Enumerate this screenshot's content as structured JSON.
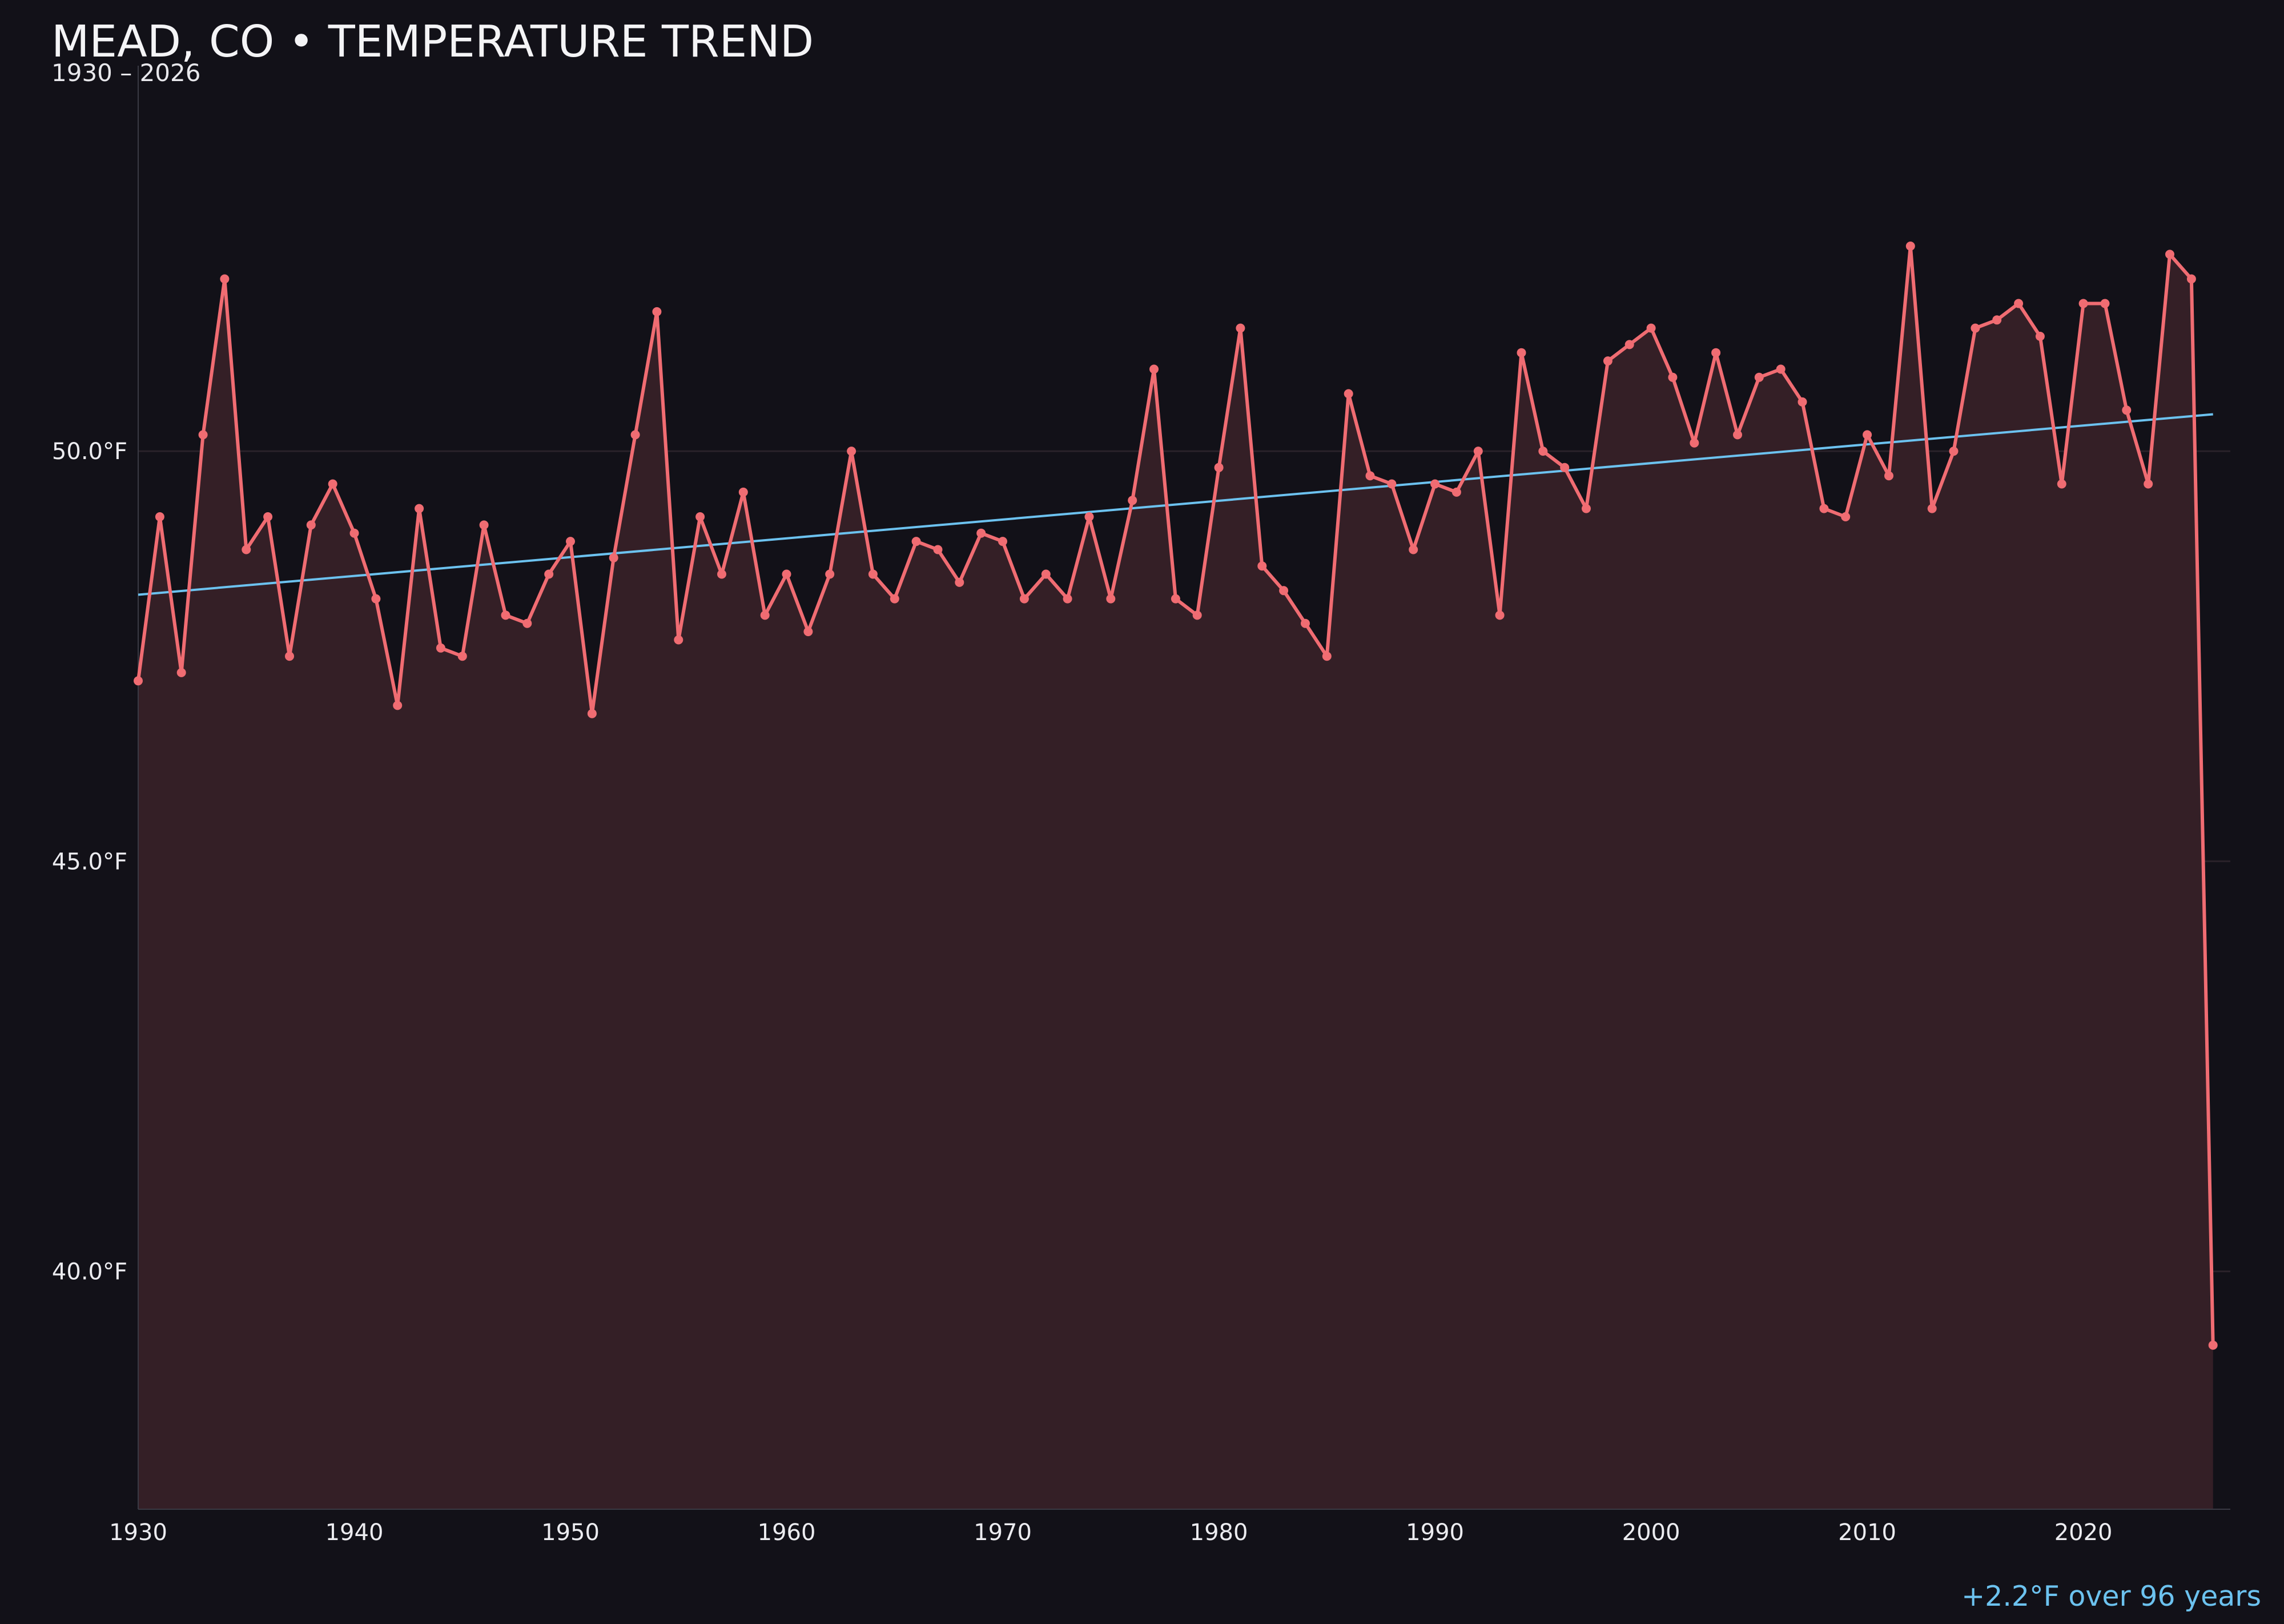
{
  "title": "MEAD, CO • TEMPERATURE TREND",
  "subtitle": "1930 – 2026",
  "footnote": "+2.2°F over 96 years",
  "colors": {
    "background": "#121118",
    "line": "#f06c72",
    "fill": "#341f26",
    "trend": "#6cc2ef",
    "grid": "#2a222a",
    "axis": "#3a3a44"
  },
  "chart_data": {
    "type": "line",
    "title": "MEAD, CO • TEMPERATURE TREND",
    "subtitle": "1930 – 2026",
    "xlabel": "",
    "ylabel": "",
    "xlim": [
      1930,
      2026.8
    ],
    "ylim": [
      37.1,
      54.7
    ],
    "x_ticks": [
      1930,
      1940,
      1950,
      1960,
      1970,
      1980,
      1990,
      2000,
      2010,
      2020
    ],
    "x_tick_labels": [
      "1930",
      "1940",
      "1950",
      "1960",
      "1970",
      "1980",
      "1990",
      "2000",
      "2010",
      "2020"
    ],
    "y_ticks": [
      40,
      45,
      50
    ],
    "y_tick_labels": [
      "40.0°F",
      "45.0°F",
      "50.0°F"
    ],
    "grid": "horizontal",
    "series": [
      {
        "type": "area-line",
        "x": [
          1930,
          1931,
          1932,
          1933,
          1934,
          1935,
          1936,
          1937,
          1938,
          1939,
          1940,
          1941,
          1942,
          1943,
          1944,
          1945,
          1946,
          1947,
          1948,
          1949,
          1950,
          1951,
          1952,
          1953,
          1954,
          1955,
          1956,
          1957,
          1958,
          1959,
          1960,
          1961,
          1962,
          1963,
          1964,
          1965,
          1966,
          1967,
          1968,
          1969,
          1970,
          1971,
          1972,
          1973,
          1974,
          1975,
          1976,
          1977,
          1978,
          1979,
          1980,
          1981,
          1982,
          1983,
          1984,
          1985,
          1986,
          1987,
          1988,
          1989,
          1990,
          1991,
          1992,
          1993,
          1994,
          1995,
          1996,
          1997,
          1998,
          1999,
          2000,
          2001,
          2002,
          2003,
          2004,
          2005,
          2006,
          2007,
          2008,
          2009,
          2010,
          2011,
          2012,
          2013,
          2014,
          2015,
          2016,
          2017,
          2018,
          2019,
          2020,
          2021,
          2022,
          2023,
          2024,
          2025,
          2026
        ],
        "values": [
          47.2,
          49.2,
          47.3,
          50.2,
          52.1,
          48.8,
          49.2,
          47.5,
          49.1,
          49.6,
          49.0,
          48.2,
          46.9,
          49.3,
          47.6,
          47.5,
          49.1,
          48.0,
          47.9,
          48.5,
          48.9,
          46.8,
          48.7,
          50.2,
          51.7,
          47.7,
          49.2,
          48.5,
          49.5,
          48.0,
          48.5,
          47.8,
          48.5,
          50.0,
          48.5,
          48.2,
          48.9,
          48.8,
          48.4,
          49.0,
          48.9,
          48.2,
          48.5,
          48.2,
          49.2,
          48.2,
          49.4,
          51.0,
          48.2,
          48.0,
          49.8,
          51.5,
          48.6,
          48.3,
          47.9,
          47.5,
          50.7,
          49.7,
          49.6,
          48.8,
          49.6,
          49.5,
          50.0,
          48.0,
          51.2,
          50.0,
          49.8,
          49.3,
          51.1,
          51.3,
          51.5,
          50.9,
          50.1,
          51.2,
          50.2,
          50.9,
          51.0,
          50.6,
          49.3,
          49.2,
          50.2,
          49.7,
          52.5,
          49.3,
          50.0,
          51.5,
          51.6,
          51.8,
          51.4,
          49.6,
          51.8,
          51.8,
          50.5,
          49.6,
          52.4,
          52.1,
          39.1
        ]
      },
      {
        "type": "trend",
        "x": [
          1930,
          2026
        ],
        "values": [
          48.25,
          50.45
        ]
      }
    ],
    "annotation": "+2.2°F over 96 years"
  }
}
